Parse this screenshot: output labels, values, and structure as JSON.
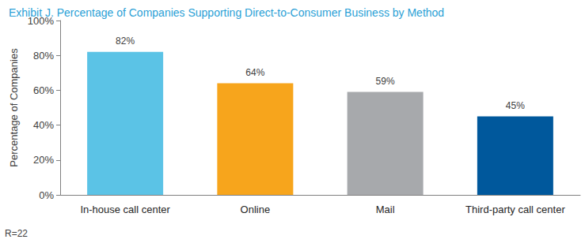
{
  "chart_data": {
    "type": "bar",
    "title": "Exhibit J. Percentage of Companies Supporting Direct-to-Consumer Business by Method",
    "y_label": "Percentage of Companies",
    "annotation": "R=22",
    "categories": [
      "In-house call center",
      "Online",
      "Mail",
      "Third-party call center"
    ],
    "values": [
      82,
      64,
      59,
      45
    ],
    "value_labels": [
      "82%",
      "64%",
      "59%",
      "45%"
    ],
    "colors": [
      "#5bc3e6",
      "#f7a51c",
      "#a7a9ac",
      "#00589c"
    ],
    "ylim": [
      0,
      100
    ],
    "yticks": [
      {
        "value": 0,
        "label": "0%"
      },
      {
        "value": 20,
        "label": "20%"
      },
      {
        "value": 40,
        "label": "40%"
      },
      {
        "value": 60,
        "label": "60%"
      },
      {
        "value": 80,
        "label": "80%"
      },
      {
        "value": 100,
        "label": "100%"
      }
    ],
    "grid": false,
    "data_labels": true
  }
}
